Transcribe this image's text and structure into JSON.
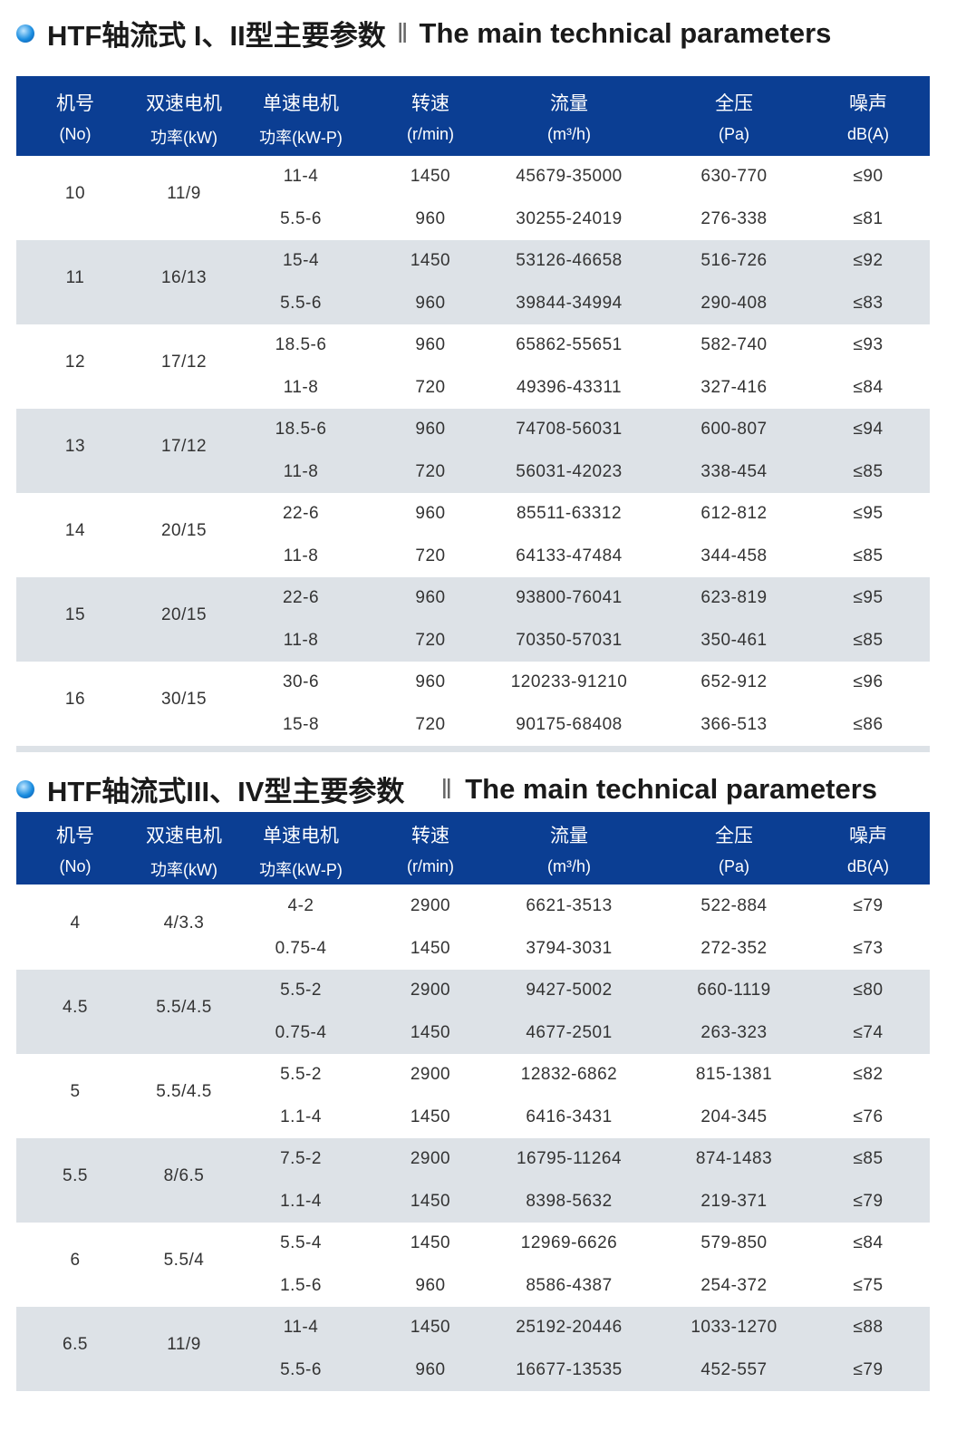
{
  "colors": {
    "header_bg": "#0b3e93",
    "row_alt": "#dde2e7"
  },
  "headers": [
    {
      "cn": "机号",
      "unit": "(No)"
    },
    {
      "cn": "双速电机",
      "unit": "功率(kW)"
    },
    {
      "cn": "单速电机",
      "unit": "功率(kW-P)"
    },
    {
      "cn": "转速",
      "unit": "(r/min)"
    },
    {
      "cn": "流量",
      "unit": "(m³/h)"
    },
    {
      "cn": "全压",
      "unit": "(Pa)"
    },
    {
      "cn": "噪声",
      "unit": "dB(A)"
    }
  ],
  "section1": {
    "title_cn": "HTF轴流式 I、II型主要参数",
    "separator": "‖",
    "title_en": "The main technical parameters",
    "groups": [
      {
        "no": "10",
        "dual": "11/9",
        "rows": [
          [
            "11-4",
            "1450",
            "45679-35000",
            "630-770",
            "≤90"
          ],
          [
            "5.5-6",
            "960",
            "30255-24019",
            "276-338",
            "≤81"
          ]
        ]
      },
      {
        "no": "11",
        "dual": "16/13",
        "rows": [
          [
            "15-4",
            "1450",
            "53126-46658",
            "516-726",
            "≤92"
          ],
          [
            "5.5-6",
            "960",
            "39844-34994",
            "290-408",
            "≤83"
          ]
        ]
      },
      {
        "no": "12",
        "dual": "17/12",
        "rows": [
          [
            "18.5-6",
            "960",
            "65862-55651",
            "582-740",
            "≤93"
          ],
          [
            "11-8",
            "720",
            "49396-43311",
            "327-416",
            "≤84"
          ]
        ]
      },
      {
        "no": "13",
        "dual": "17/12",
        "rows": [
          [
            "18.5-6",
            "960",
            "74708-56031",
            "600-807",
            "≤94"
          ],
          [
            "11-8",
            "720",
            "56031-42023",
            "338-454",
            "≤85"
          ]
        ]
      },
      {
        "no": "14",
        "dual": "20/15",
        "rows": [
          [
            "22-6",
            "960",
            "85511-63312",
            "612-812",
            "≤95"
          ],
          [
            "11-8",
            "720",
            "64133-47484",
            "344-458",
            "≤85"
          ]
        ]
      },
      {
        "no": "15",
        "dual": "20/15",
        "rows": [
          [
            "22-6",
            "960",
            "93800-76041",
            "623-819",
            "≤95"
          ],
          [
            "11-8",
            "720",
            "70350-57031",
            "350-461",
            "≤85"
          ]
        ]
      },
      {
        "no": "16",
        "dual": "30/15",
        "rows": [
          [
            "30-6",
            "960",
            "120233-91210",
            "652-912",
            "≤96"
          ],
          [
            "15-8",
            "720",
            "90175-68408",
            "366-513",
            "≤86"
          ]
        ]
      }
    ]
  },
  "section2": {
    "title_cn": "HTF轴流式III、IV型主要参数",
    "separator": "‖",
    "title_en": "The main technical parameters",
    "groups": [
      {
        "no": "4",
        "dual": "4/3.3",
        "rows": [
          [
            "4-2",
            "2900",
            "6621-3513",
            "522-884",
            "≤79"
          ],
          [
            "0.75-4",
            "1450",
            "3794-3031",
            "272-352",
            "≤73"
          ]
        ]
      },
      {
        "no": "4.5",
        "dual": "5.5/4.5",
        "rows": [
          [
            "5.5-2",
            "2900",
            "9427-5002",
            "660-1119",
            "≤80"
          ],
          [
            "0.75-4",
            "1450",
            "4677-2501",
            "263-323",
            "≤74"
          ]
        ]
      },
      {
        "no": "5",
        "dual": "5.5/4.5",
        "rows": [
          [
            "5.5-2",
            "2900",
            "12832-6862",
            "815-1381",
            "≤82"
          ],
          [
            "1.1-4",
            "1450",
            "6416-3431",
            "204-345",
            "≤76"
          ]
        ]
      },
      {
        "no": "5.5",
        "dual": "8/6.5",
        "rows": [
          [
            "7.5-2",
            "2900",
            "16795-11264",
            "874-1483",
            "≤85"
          ],
          [
            "1.1-4",
            "1450",
            "8398-5632",
            "219-371",
            "≤79"
          ]
        ]
      },
      {
        "no": "6",
        "dual": "5.5/4",
        "rows": [
          [
            "5.5-4",
            "1450",
            "12969-6626",
            "579-850",
            "≤84"
          ],
          [
            "1.5-6",
            "960",
            "8586-4387",
            "254-372",
            "≤75"
          ]
        ]
      },
      {
        "no": "6.5",
        "dual": "11/9",
        "rows": [
          [
            "11-4",
            "1450",
            "25192-20446",
            "1033-1270",
            "≤88"
          ],
          [
            "5.5-6",
            "960",
            "16677-13535",
            "452-557",
            "≤79"
          ]
        ]
      }
    ]
  }
}
